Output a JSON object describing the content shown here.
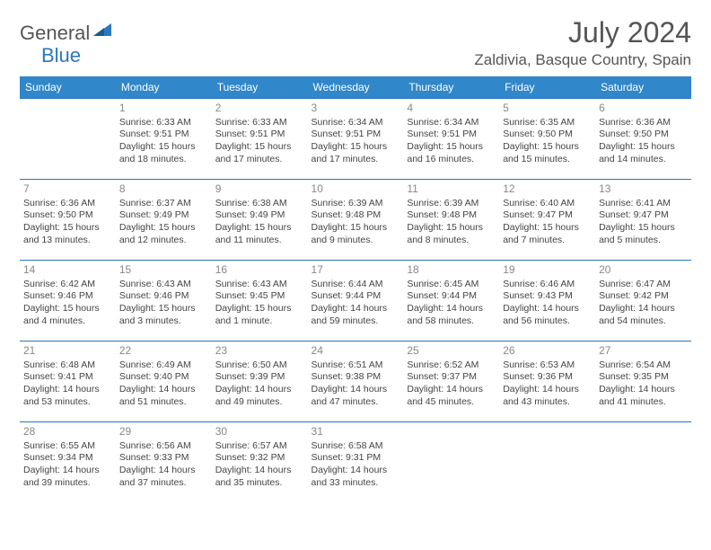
{
  "brand": {
    "part1": "General",
    "part2": "Blue"
  },
  "title": "July 2024",
  "location": "Zaldivia, Basque Country, Spain",
  "colors": {
    "header_bg": "#3087c9",
    "header_text": "#ffffff",
    "cell_border": "#2a78bd",
    "daynum": "#888888",
    "body_text": "#444444",
    "title_text": "#555555",
    "brand_gray": "#555555",
    "brand_blue": "#2a78bd",
    "background": "#ffffff"
  },
  "typography": {
    "title_fontsize": 32,
    "location_fontsize": 17,
    "header_fontsize": 12,
    "daynum_fontsize": 12,
    "cell_fontsize": 10.5,
    "brand_fontsize": 22
  },
  "day_headers": [
    "Sunday",
    "Monday",
    "Tuesday",
    "Wednesday",
    "Thursday",
    "Friday",
    "Saturday"
  ],
  "weeks": [
    [
      {
        "day": "",
        "lines": []
      },
      {
        "day": "1",
        "lines": [
          "Sunrise: 6:33 AM",
          "Sunset: 9:51 PM",
          "Daylight: 15 hours and 18 minutes."
        ]
      },
      {
        "day": "2",
        "lines": [
          "Sunrise: 6:33 AM",
          "Sunset: 9:51 PM",
          "Daylight: 15 hours and 17 minutes."
        ]
      },
      {
        "day": "3",
        "lines": [
          "Sunrise: 6:34 AM",
          "Sunset: 9:51 PM",
          "Daylight: 15 hours and 17 minutes."
        ]
      },
      {
        "day": "4",
        "lines": [
          "Sunrise: 6:34 AM",
          "Sunset: 9:51 PM",
          "Daylight: 15 hours and 16 minutes."
        ]
      },
      {
        "day": "5",
        "lines": [
          "Sunrise: 6:35 AM",
          "Sunset: 9:50 PM",
          "Daylight: 15 hours and 15 minutes."
        ]
      },
      {
        "day": "6",
        "lines": [
          "Sunrise: 6:36 AM",
          "Sunset: 9:50 PM",
          "Daylight: 15 hours and 14 minutes."
        ]
      }
    ],
    [
      {
        "day": "7",
        "lines": [
          "Sunrise: 6:36 AM",
          "Sunset: 9:50 PM",
          "Daylight: 15 hours and 13 minutes."
        ]
      },
      {
        "day": "8",
        "lines": [
          "Sunrise: 6:37 AM",
          "Sunset: 9:49 PM",
          "Daylight: 15 hours and 12 minutes."
        ]
      },
      {
        "day": "9",
        "lines": [
          "Sunrise: 6:38 AM",
          "Sunset: 9:49 PM",
          "Daylight: 15 hours and 11 minutes."
        ]
      },
      {
        "day": "10",
        "lines": [
          "Sunrise: 6:39 AM",
          "Sunset: 9:48 PM",
          "Daylight: 15 hours and 9 minutes."
        ]
      },
      {
        "day": "11",
        "lines": [
          "Sunrise: 6:39 AM",
          "Sunset: 9:48 PM",
          "Daylight: 15 hours and 8 minutes."
        ]
      },
      {
        "day": "12",
        "lines": [
          "Sunrise: 6:40 AM",
          "Sunset: 9:47 PM",
          "Daylight: 15 hours and 7 minutes."
        ]
      },
      {
        "day": "13",
        "lines": [
          "Sunrise: 6:41 AM",
          "Sunset: 9:47 PM",
          "Daylight: 15 hours and 5 minutes."
        ]
      }
    ],
    [
      {
        "day": "14",
        "lines": [
          "Sunrise: 6:42 AM",
          "Sunset: 9:46 PM",
          "Daylight: 15 hours and 4 minutes."
        ]
      },
      {
        "day": "15",
        "lines": [
          "Sunrise: 6:43 AM",
          "Sunset: 9:46 PM",
          "Daylight: 15 hours and 3 minutes."
        ]
      },
      {
        "day": "16",
        "lines": [
          "Sunrise: 6:43 AM",
          "Sunset: 9:45 PM",
          "Daylight: 15 hours and 1 minute."
        ]
      },
      {
        "day": "17",
        "lines": [
          "Sunrise: 6:44 AM",
          "Sunset: 9:44 PM",
          "Daylight: 14 hours and 59 minutes."
        ]
      },
      {
        "day": "18",
        "lines": [
          "Sunrise: 6:45 AM",
          "Sunset: 9:44 PM",
          "Daylight: 14 hours and 58 minutes."
        ]
      },
      {
        "day": "19",
        "lines": [
          "Sunrise: 6:46 AM",
          "Sunset: 9:43 PM",
          "Daylight: 14 hours and 56 minutes."
        ]
      },
      {
        "day": "20",
        "lines": [
          "Sunrise: 6:47 AM",
          "Sunset: 9:42 PM",
          "Daylight: 14 hours and 54 minutes."
        ]
      }
    ],
    [
      {
        "day": "21",
        "lines": [
          "Sunrise: 6:48 AM",
          "Sunset: 9:41 PM",
          "Daylight: 14 hours and 53 minutes."
        ]
      },
      {
        "day": "22",
        "lines": [
          "Sunrise: 6:49 AM",
          "Sunset: 9:40 PM",
          "Daylight: 14 hours and 51 minutes."
        ]
      },
      {
        "day": "23",
        "lines": [
          "Sunrise: 6:50 AM",
          "Sunset: 9:39 PM",
          "Daylight: 14 hours and 49 minutes."
        ]
      },
      {
        "day": "24",
        "lines": [
          "Sunrise: 6:51 AM",
          "Sunset: 9:38 PM",
          "Daylight: 14 hours and 47 minutes."
        ]
      },
      {
        "day": "25",
        "lines": [
          "Sunrise: 6:52 AM",
          "Sunset: 9:37 PM",
          "Daylight: 14 hours and 45 minutes."
        ]
      },
      {
        "day": "26",
        "lines": [
          "Sunrise: 6:53 AM",
          "Sunset: 9:36 PM",
          "Daylight: 14 hours and 43 minutes."
        ]
      },
      {
        "day": "27",
        "lines": [
          "Sunrise: 6:54 AM",
          "Sunset: 9:35 PM",
          "Daylight: 14 hours and 41 minutes."
        ]
      }
    ],
    [
      {
        "day": "28",
        "lines": [
          "Sunrise: 6:55 AM",
          "Sunset: 9:34 PM",
          "Daylight: 14 hours and 39 minutes."
        ]
      },
      {
        "day": "29",
        "lines": [
          "Sunrise: 6:56 AM",
          "Sunset: 9:33 PM",
          "Daylight: 14 hours and 37 minutes."
        ]
      },
      {
        "day": "30",
        "lines": [
          "Sunrise: 6:57 AM",
          "Sunset: 9:32 PM",
          "Daylight: 14 hours and 35 minutes."
        ]
      },
      {
        "day": "31",
        "lines": [
          "Sunrise: 6:58 AM",
          "Sunset: 9:31 PM",
          "Daylight: 14 hours and 33 minutes."
        ]
      },
      {
        "day": "",
        "lines": []
      },
      {
        "day": "",
        "lines": []
      },
      {
        "day": "",
        "lines": []
      }
    ]
  ]
}
